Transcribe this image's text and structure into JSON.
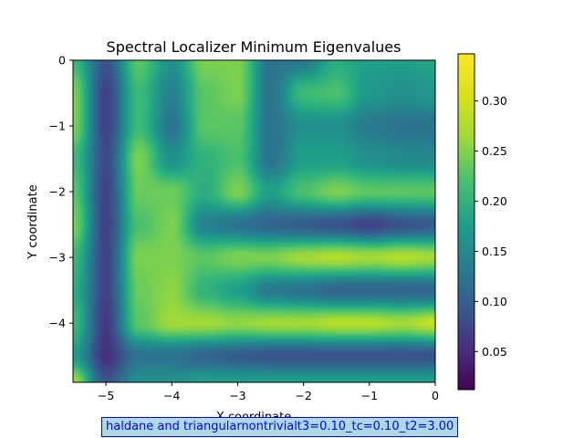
{
  "chart_data": {
    "type": "heatmap",
    "title": "Spectral Localizer Minimum Eigenvalues",
    "xlabel": "X coordinate",
    "ylabel": "Y coordinate",
    "xlim": [
      -5.5,
      0
    ],
    "ylim": [
      -4.9,
      0
    ],
    "x_ticks": [
      {
        "value": -5,
        "label": "−5"
      },
      {
        "value": -4,
        "label": "−4"
      },
      {
        "value": -3,
        "label": "−3"
      },
      {
        "value": -2,
        "label": "−2"
      },
      {
        "value": -1,
        "label": "−1"
      },
      {
        "value": 0,
        "label": "0"
      }
    ],
    "y_ticks": [
      {
        "value": 0,
        "label": "0"
      },
      {
        "value": -1,
        "label": "−1"
      },
      {
        "value": -2,
        "label": "−2"
      },
      {
        "value": -3,
        "label": "−3"
      },
      {
        "value": -4,
        "label": "−4"
      }
    ],
    "colorbar": {
      "range": [
        0.012,
        0.347
      ],
      "colormap": "viridis",
      "ticks": [
        {
          "value": 0.05,
          "label": "0.05"
        },
        {
          "value": 0.1,
          "label": "0.10"
        },
        {
          "value": 0.15,
          "label": "0.15"
        },
        {
          "value": 0.2,
          "label": "0.20"
        },
        {
          "value": 0.25,
          "label": "0.25"
        },
        {
          "value": 0.3,
          "label": "0.30"
        }
      ]
    },
    "x": [
      -5.5,
      -5.0,
      -4.5,
      -4.0,
      -3.5,
      -3.0,
      -2.5,
      -2.0,
      -1.5,
      -1.0,
      -0.5,
      0.0
    ],
    "y": [
      0.0,
      -0.5,
      -1.0,
      -1.5,
      -2.0,
      -2.5,
      -3.0,
      -3.5,
      -4.0,
      -4.5,
      -4.9
    ],
    "z": [
      [
        0.24,
        0.1,
        0.26,
        0.18,
        0.28,
        0.28,
        0.14,
        0.15,
        0.22,
        0.2,
        0.2,
        0.21
      ],
      [
        0.28,
        0.08,
        0.24,
        0.16,
        0.26,
        0.28,
        0.14,
        0.24,
        0.25,
        0.19,
        0.18,
        0.19
      ],
      [
        0.28,
        0.08,
        0.24,
        0.14,
        0.26,
        0.26,
        0.14,
        0.18,
        0.18,
        0.15,
        0.14,
        0.14
      ],
      [
        0.24,
        0.09,
        0.28,
        0.18,
        0.23,
        0.25,
        0.14,
        0.2,
        0.2,
        0.18,
        0.17,
        0.17
      ],
      [
        0.26,
        0.08,
        0.27,
        0.27,
        0.22,
        0.28,
        0.2,
        0.25,
        0.28,
        0.26,
        0.26,
        0.26
      ],
      [
        0.28,
        0.08,
        0.25,
        0.28,
        0.16,
        0.14,
        0.12,
        0.11,
        0.1,
        0.08,
        0.1,
        0.11
      ],
      [
        0.24,
        0.08,
        0.28,
        0.28,
        0.26,
        0.28,
        0.28,
        0.3,
        0.31,
        0.3,
        0.31,
        0.3
      ],
      [
        0.22,
        0.08,
        0.27,
        0.29,
        0.23,
        0.2,
        0.15,
        0.14,
        0.12,
        0.12,
        0.12,
        0.12
      ],
      [
        0.24,
        0.07,
        0.26,
        0.3,
        0.3,
        0.29,
        0.3,
        0.3,
        0.31,
        0.31,
        0.3,
        0.32
      ],
      [
        0.2,
        0.06,
        0.14,
        0.14,
        0.12,
        0.11,
        0.1,
        0.1,
        0.1,
        0.1,
        0.1,
        0.1
      ],
      [
        0.3,
        0.1,
        0.18,
        0.18,
        0.2,
        0.2,
        0.2,
        0.2,
        0.2,
        0.2,
        0.2,
        0.2
      ]
    ]
  },
  "footer": {
    "label": "haldane and triangularnontrivialt3=0.10_tc=0.10_t2=3.00",
    "background": "#add8e6",
    "border": "#0000ff",
    "text_color": "#0000ff"
  }
}
